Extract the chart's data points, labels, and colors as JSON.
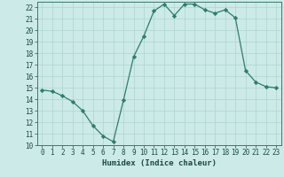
{
  "x": [
    0,
    1,
    2,
    3,
    4,
    5,
    6,
    7,
    8,
    9,
    10,
    11,
    12,
    13,
    14,
    15,
    16,
    17,
    18,
    19,
    20,
    21,
    22,
    23
  ],
  "y": [
    14.8,
    14.7,
    14.3,
    13.8,
    13.0,
    11.7,
    10.8,
    10.3,
    13.9,
    17.7,
    19.5,
    21.7,
    22.3,
    21.3,
    22.3,
    22.3,
    21.8,
    21.5,
    21.8,
    21.1,
    16.5,
    15.5,
    15.1,
    15.0
  ],
  "xlabel": "Humidex (Indice chaleur)",
  "line_color": "#2e7d6e",
  "marker": "D",
  "marker_size": 2.2,
  "bg_color": "#cceae8",
  "grid_color": "#aed4d0",
  "ylim": [
    10,
    22.5
  ],
  "yticks": [
    10,
    11,
    12,
    13,
    14,
    15,
    16,
    17,
    18,
    19,
    20,
    21,
    22
  ],
  "xticks": [
    0,
    1,
    2,
    3,
    4,
    5,
    6,
    7,
    8,
    9,
    10,
    11,
    12,
    13,
    14,
    15,
    16,
    17,
    18,
    19,
    20,
    21,
    22,
    23
  ],
  "tick_fontsize": 5.5,
  "xlabel_fontsize": 6.5,
  "line_width": 0.9
}
